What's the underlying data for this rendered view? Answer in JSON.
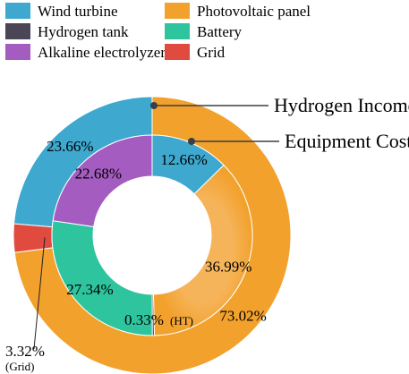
{
  "chart_data": {
    "type": "pie",
    "legend": {
      "placement": "top",
      "entries": [
        {
          "name": "Wind turbine",
          "color": "#3ea8cf"
        },
        {
          "name": "Photovoltaic panel",
          "color": "#f2a12d"
        },
        {
          "name": "Hydrogen tank",
          "color": "#4a4655"
        },
        {
          "name": "Battery",
          "color": "#2ec49d"
        },
        {
          "name": "Alkaline electrolyzer",
          "color": "#a45cc0"
        },
        {
          "name": "Grid",
          "color": "#e04a3f"
        }
      ]
    },
    "rings": [
      {
        "name": "Hydrogen Income",
        "position": "outer",
        "slices": [
          {
            "category": "Photovoltaic panel",
            "value": 73.02,
            "label": "73.02%",
            "color": "#f2a12d"
          },
          {
            "category": "Grid",
            "value": 3.32,
            "label": "3.32%",
            "sublabel": "(Grid)",
            "color": "#e04a3f"
          },
          {
            "category": "Wind turbine",
            "value": 23.66,
            "label": "23.66%",
            "color": "#3ea8cf"
          }
        ]
      },
      {
        "name": "Equipment Cost",
        "position": "inner",
        "slices": [
          {
            "category": "Wind turbine",
            "value": 12.66,
            "label": "12.66%",
            "color": "#3ea8cf"
          },
          {
            "category": "Photovoltaic panel",
            "value": 36.99,
            "label": "36.99%",
            "color": "#f2a12d"
          },
          {
            "category": "Hydrogen tank",
            "value": 0.33,
            "label": "0.33%",
            "sublabel": "(HT)",
            "color": "#4a4655"
          },
          {
            "category": "Battery",
            "value": 27.34,
            "label": "27.34%",
            "color": "#2ec49d"
          },
          {
            "category": "Alkaline electrolyzer",
            "value": 22.68,
            "label": "22.68%",
            "color": "#a45cc0"
          }
        ]
      }
    ]
  }
}
